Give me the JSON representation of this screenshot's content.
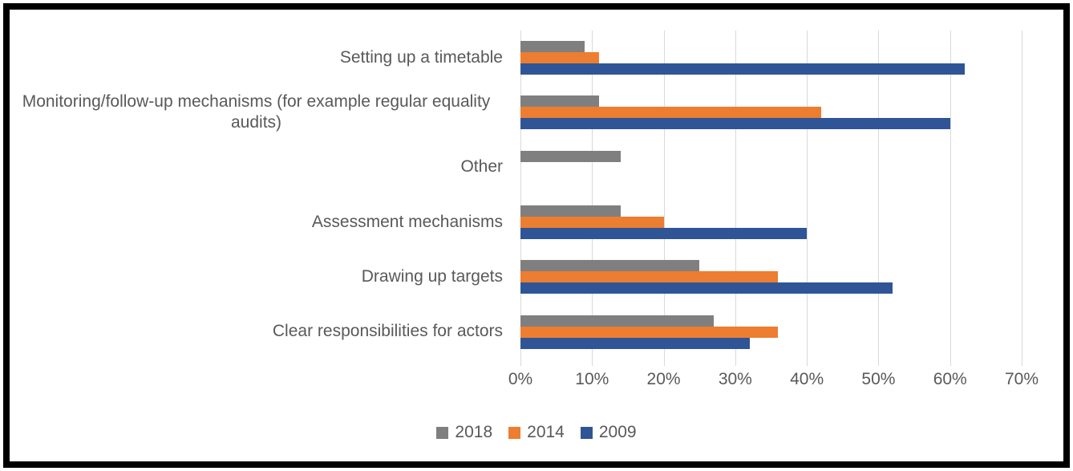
{
  "chart_data": {
    "type": "bar",
    "orientation": "horizontal",
    "title": "",
    "xlabel": "",
    "ylabel": "",
    "categories": [
      "Setting up a timetable",
      "Monitoring/follow-up mechanisms (for example regular equality audits)",
      "Other",
      "Assessment mechanisms",
      "Drawing up targets",
      "Clear responsibilities for actors"
    ],
    "series": [
      {
        "name": "2018",
        "color": "#7F7F7F",
        "values": [
          9,
          11,
          14,
          14,
          25,
          27
        ]
      },
      {
        "name": "2014",
        "color": "#ED7D31",
        "values": [
          11,
          42,
          0,
          20,
          36,
          36
        ]
      },
      {
        "name": "2009",
        "color": "#2F5597",
        "values": [
          62,
          60,
          0,
          40,
          52,
          32
        ]
      }
    ],
    "x_ticks": [
      "0%",
      "10%",
      "20%",
      "30%",
      "40%",
      "50%",
      "60%",
      "70%"
    ],
    "xlim": [
      0,
      70
    ],
    "grid": "vertical",
    "gridline_color": "#D9D9D9",
    "text_color": "#595959",
    "frame_border_color": "#000000",
    "legend_position": "bottom",
    "legend_entries": [
      "2018",
      "2014",
      "2009"
    ],
    "bar_order_per_category_top_to_bottom": [
      "2018",
      "2014",
      "2009"
    ]
  }
}
